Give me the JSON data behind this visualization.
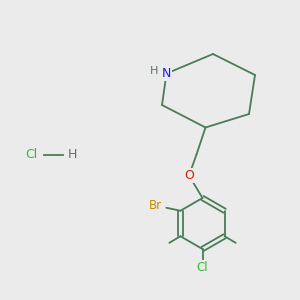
{
  "background_color": "#ebebeb",
  "bond_color": "#4a7c59",
  "N_color": "#1a1aff",
  "O_color": "#cc2200",
  "Br_color": "#cc8800",
  "Cl_color": "#33bb33",
  "H_color": "#607070",
  "hcl_Cl_color": "#33bb33",
  "hcl_H_color": "#607070",
  "line_width": 1.3,
  "figsize": [
    3.0,
    3.0
  ],
  "dpi": 100,
  "xlim": [
    0,
    10
  ],
  "ylim": [
    0,
    10
  ]
}
